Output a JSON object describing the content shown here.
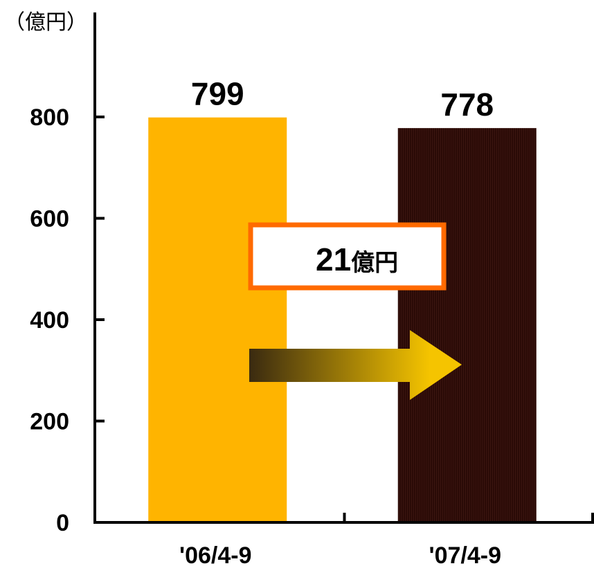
{
  "chart_data": {
    "type": "bar",
    "unit_label": "（億円）",
    "categories": [
      "'06/4-9",
      "'07/4-9"
    ],
    "values": [
      799,
      778
    ],
    "data_labels": [
      "799",
      "778"
    ],
    "ylim": [
      0,
      900
    ],
    "yticks": [
      0,
      200,
      400,
      600,
      800
    ],
    "ytick_labels": [
      "0",
      "200",
      "400",
      "600",
      "800"
    ],
    "bar_colors": [
      "#FFB400",
      "#2A0A06"
    ],
    "grid": false,
    "legend": "none",
    "annotation": {
      "value": "21",
      "unit": "億円",
      "box_border_color": "#FF6A00",
      "arrow_colors": [
        "#3A2A10",
        "#F5C400"
      ]
    }
  }
}
